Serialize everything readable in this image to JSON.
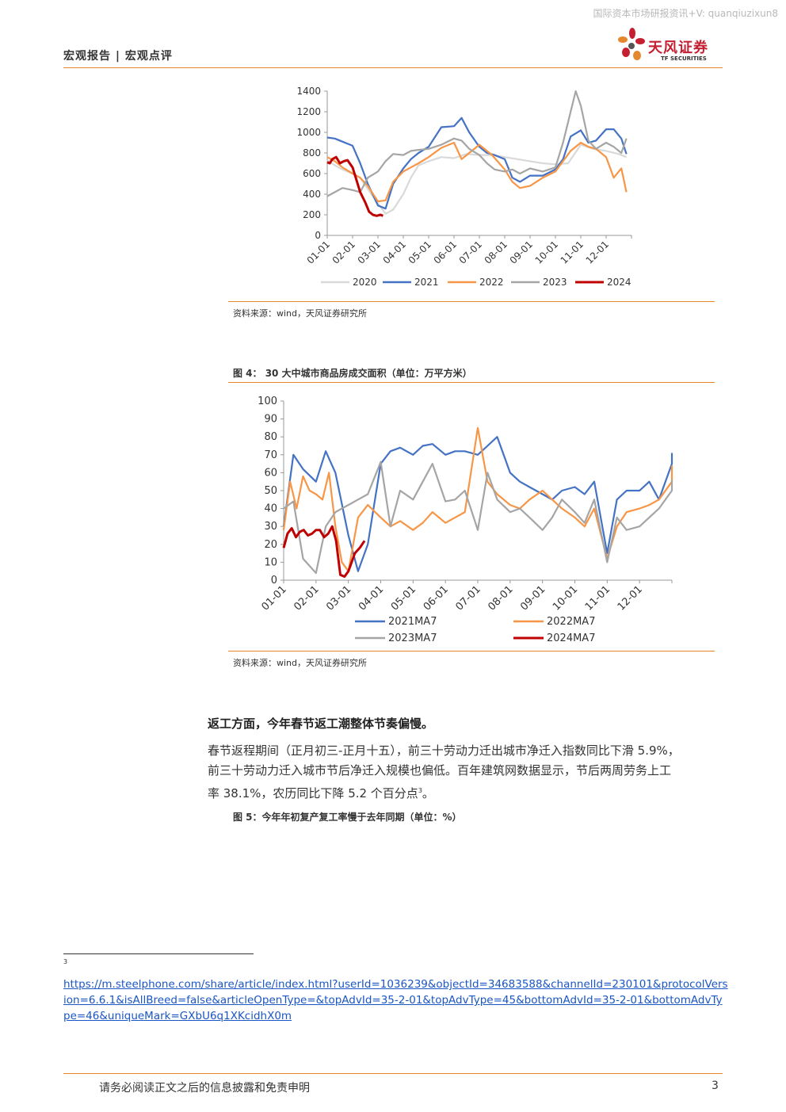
{
  "header": {
    "watermark": "国际资本市场研报资讯+V: quanqiuzixun8",
    "title": "宏观报告 | 宏观点评",
    "logo_cn": "天风证券",
    "logo_en": "TF SECURITIES"
  },
  "figure3": {
    "source": "资料来源：wind，天风证券研究所"
  },
  "figure4": {
    "title": "图 4：  30 大中城市商品房成交面积（单位：万平方米）",
    "source": "资料来源：wind，天风证券研究所"
  },
  "section": {
    "heading": "返工方面，今年春节返工潮整体节奏偏慢。",
    "para1": "春节返程期间（正月初三-正月十五），前三十劳动力迁出城市净迁入指数同比下滑 5.9%，",
    "para2": "前三十劳动力迁入城市节后净迁入规模也偏低。百年建筑网数据显示，节后两周劳务上工",
    "para3": "率 38.1%，农历同比下降 5.2 个百分点",
    "para3_sup": "3",
    "para3_end": "。"
  },
  "figure5": {
    "title": "图 5：今年年初复产复工率慢于去年同期（单位：%）"
  },
  "footnote": {
    "number": "3",
    "url": "https://m.steelphone.com/share/article/index.html?userId=1036239&objectId=34683588&channelId=230101&protocolVersion=6.6.1&isAllBreed=false&articleOpenType=&topAdvId=35-2-01&topAdvType=45&bottomAdvId=35-2-01&bottomAdvType=46&uniqueMark=GXbU6q1XKcidhX0m"
  },
  "footer": {
    "disclaimer": "请务必阅读正文之后的信息披露和免责申明",
    "page": "3"
  },
  "chart_data": [
    {
      "type": "line",
      "x_tick_labels": [
        "01-01",
        "02-01",
        "03-01",
        "04-01",
        "05-01",
        "06-01",
        "07-01",
        "08-01",
        "09-01",
        "10-01",
        "11-01",
        "12-01"
      ],
      "ylim": [
        0,
        1400
      ],
      "y_ticks": [
        0,
        200,
        400,
        600,
        800,
        1000,
        1200,
        1400
      ],
      "legend_position": "bottom",
      "series": [
        {
          "name": "2020",
          "color": "#d9d9d9",
          "x": [
            0,
            0.3,
            0.6,
            1.0,
            1.3,
            1.6,
            2.0,
            2.3,
            2.6,
            3.0,
            3.3,
            3.6,
            4.0,
            4.5,
            5.0,
            5.5,
            6.0,
            6.5,
            7.0,
            7.5,
            8.0,
            8.5,
            9.0,
            9.5,
            10.0,
            10.5,
            11.0,
            11.5,
            11.8
          ],
          "values": [
            730,
            680,
            640,
            600,
            560,
            450,
            310,
            210,
            250,
            400,
            560,
            680,
            720,
            760,
            750,
            790,
            780,
            780,
            760,
            740,
            720,
            700,
            690,
            700,
            880,
            840,
            820,
            790,
            760
          ]
        },
        {
          "name": "2021",
          "color": "#4472c4",
          "x": [
            0,
            0.3,
            0.6,
            1.0,
            1.3,
            1.6,
            2.0,
            2.3,
            2.6,
            3.0,
            3.3,
            3.6,
            4.0,
            4.5,
            5.0,
            5.3,
            5.6,
            6.0,
            6.3,
            6.6,
            7.0,
            7.3,
            7.6,
            8.0,
            8.5,
            9.0,
            9.3,
            9.6,
            10.0,
            10.3,
            10.6,
            11.0,
            11.3,
            11.6,
            11.8
          ],
          "values": [
            950,
            940,
            910,
            870,
            700,
            500,
            290,
            260,
            500,
            650,
            740,
            800,
            860,
            1050,
            1060,
            1140,
            1000,
            860,
            800,
            780,
            740,
            560,
            520,
            580,
            580,
            640,
            740,
            960,
            1020,
            900,
            920,
            1030,
            1030,
            940,
            790
          ]
        },
        {
          "name": "2022",
          "color": "#f79646",
          "x": [
            0,
            0.3,
            0.6,
            1.0,
            1.3,
            1.6,
            2.0,
            2.3,
            2.6,
            3.0,
            3.3,
            3.6,
            4.0,
            4.5,
            5.0,
            5.3,
            5.6,
            6.0,
            6.5,
            7.0,
            7.3,
            7.6,
            8.0,
            8.5,
            9.0,
            9.3,
            9.6,
            10.0,
            10.3,
            10.6,
            11.0,
            11.3,
            11.6,
            11.8
          ],
          "values": [
            760,
            720,
            660,
            600,
            560,
            480,
            330,
            340,
            520,
            620,
            660,
            700,
            760,
            850,
            900,
            740,
            800,
            880,
            780,
            640,
            520,
            460,
            480,
            560,
            620,
            720,
            820,
            900,
            860,
            840,
            760,
            560,
            650,
            420
          ]
        },
        {
          "name": "2023",
          "color": "#a5a5a5",
          "x": [
            0,
            0.3,
            0.6,
            1.0,
            1.3,
            1.6,
            2.0,
            2.3,
            2.6,
            3.0,
            3.3,
            3.6,
            4.0,
            4.5,
            5.0,
            5.3,
            5.6,
            6.0,
            6.3,
            6.6,
            7.0,
            7.3,
            7.6,
            8.0,
            8.5,
            9.0,
            9.3,
            9.6,
            9.8,
            10.0,
            10.3,
            10.6,
            11.0,
            11.3,
            11.6,
            11.8
          ],
          "values": [
            380,
            420,
            460,
            440,
            420,
            560,
            620,
            720,
            790,
            780,
            820,
            830,
            840,
            880,
            940,
            920,
            840,
            780,
            700,
            640,
            620,
            640,
            600,
            650,
            620,
            660,
            900,
            1200,
            1400,
            1260,
            920,
            840,
            900,
            860,
            800,
            940
          ]
        },
        {
          "name": "2024",
          "color": "#c00000",
          "x": [
            0,
            0.1,
            0.2,
            0.35,
            0.5,
            0.65,
            0.8,
            1.0,
            1.15,
            1.3,
            1.5,
            1.65,
            1.8,
            1.95,
            2.1,
            2.2
          ],
          "values": [
            710,
            700,
            740,
            760,
            700,
            720,
            730,
            660,
            540,
            420,
            320,
            230,
            200,
            190,
            200,
            190
          ]
        }
      ]
    },
    {
      "type": "line",
      "x_tick_labels": [
        "01-01",
        "02-01",
        "03-01",
        "04-01",
        "05-01",
        "06-01",
        "07-01",
        "08-01",
        "09-01",
        "10-01",
        "11-01",
        "12-01"
      ],
      "ylim": [
        0,
        100
      ],
      "y_ticks": [
        0,
        10,
        20,
        30,
        40,
        50,
        60,
        70,
        80,
        90,
        100
      ],
      "legend_position": "bottom",
      "series": [
        {
          "name": "2021MA7",
          "color": "#4472c4",
          "x": [
            0,
            0.3,
            0.6,
            1.0,
            1.3,
            1.6,
            2.0,
            2.3,
            2.6,
            3.0,
            3.3,
            3.6,
            4.0,
            4.3,
            4.6,
            5.0,
            5.3,
            5.6,
            6.0,
            6.3,
            6.6,
            7.0,
            7.3,
            7.6,
            8.0,
            8.3,
            8.6,
            9.0,
            9.3,
            9.6,
            10.0,
            10.3,
            10.6,
            11.0,
            11.3,
            11.6,
            12.0,
            12.0
          ],
          "values": [
            30,
            70,
            62,
            55,
            72,
            60,
            25,
            5,
            20,
            65,
            72,
            74,
            70,
            75,
            76,
            70,
            72,
            72,
            70,
            75,
            80,
            60,
            55,
            52,
            48,
            45,
            50,
            52,
            48,
            55,
            15,
            45,
            50,
            50,
            55,
            45,
            65,
            71
          ]
        },
        {
          "name": "2022MA7",
          "color": "#f79646",
          "x": [
            0,
            0.2,
            0.4,
            0.6,
            0.8,
            1.0,
            1.2,
            1.4,
            1.6,
            1.8,
            2.0,
            2.3,
            2.6,
            3.0,
            3.3,
            3.6,
            4.0,
            4.3,
            4.6,
            5.0,
            5.3,
            5.6,
            6.0,
            6.3,
            6.6,
            7.0,
            7.3,
            7.6,
            8.0,
            8.3,
            8.6,
            9.0,
            9.3,
            9.6,
            10.0,
            10.3,
            10.6,
            11.0,
            11.3,
            11.6,
            12.0,
            12.0
          ],
          "values": [
            28,
            55,
            40,
            58,
            50,
            48,
            45,
            60,
            30,
            10,
            5,
            35,
            42,
            35,
            30,
            33,
            28,
            32,
            38,
            32,
            35,
            38,
            85,
            55,
            48,
            42,
            40,
            45,
            50,
            45,
            40,
            35,
            30,
            40,
            12,
            30,
            38,
            40,
            42,
            45,
            55,
            64
          ]
        },
        {
          "name": "2023MA7",
          "color": "#a5a5a5",
          "x": [
            0,
            0.3,
            0.6,
            1.0,
            1.3,
            1.6,
            2.0,
            2.3,
            2.6,
            3.0,
            3.3,
            3.6,
            4.0,
            4.3,
            4.6,
            5.0,
            5.3,
            5.6,
            6.0,
            6.3,
            6.6,
            7.0,
            7.3,
            7.6,
            8.0,
            8.3,
            8.6,
            9.0,
            9.3,
            9.6,
            10.0,
            10.3,
            10.6,
            11.0,
            11.3,
            11.6,
            12.0,
            12.0
          ],
          "values": [
            40,
            44,
            12,
            4,
            30,
            38,
            42,
            45,
            48,
            66,
            30,
            50,
            45,
            55,
            65,
            44,
            45,
            50,
            28,
            60,
            45,
            38,
            40,
            35,
            28,
            35,
            45,
            38,
            32,
            45,
            10,
            35,
            28,
            30,
            35,
            40,
            50,
            56
          ]
        },
        {
          "name": "2024MA7",
          "color": "#c00000",
          "x": [
            0,
            0.12,
            0.25,
            0.38,
            0.5,
            0.62,
            0.75,
            0.88,
            1.0,
            1.12,
            1.25,
            1.38,
            1.5,
            1.62,
            1.75,
            1.88,
            2.0,
            2.1,
            2.2,
            2.35,
            2.5
          ],
          "values": [
            18,
            26,
            29,
            24,
            27,
            28,
            25,
            26,
            28,
            28,
            24,
            26,
            30,
            22,
            3,
            2,
            5,
            10,
            15,
            18,
            22
          ]
        }
      ]
    }
  ]
}
